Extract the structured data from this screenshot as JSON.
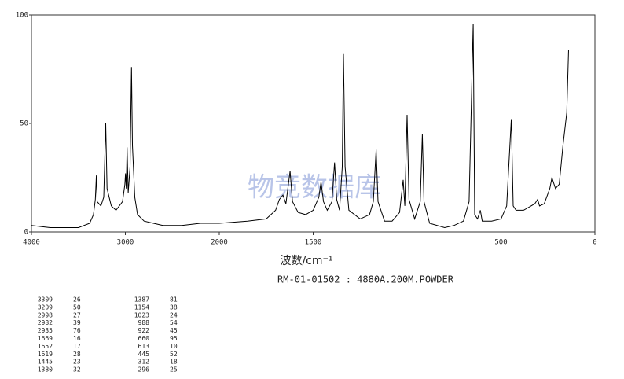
{
  "chart_data": {
    "type": "line",
    "xlabel": "波数/cm⁻¹",
    "subtitle": "RM-01-01502 : 4880A.200M.POWDER",
    "watermark": "物竞数据库",
    "xlim": [
      4000,
      0
    ],
    "x_break": 2000,
    "xticks": [
      4000,
      3000,
      2000,
      1500,
      500,
      0
    ],
    "ylim": [
      0,
      100
    ],
    "yticks": [
      0,
      50,
      100
    ],
    "color": "#000000",
    "x": [
      4000,
      3800,
      3500,
      3380,
      3340,
      3320,
      3309,
      3300,
      3260,
      3230,
      3209,
      3195,
      3150,
      3100,
      3030,
      3005,
      2998,
      2990,
      2982,
      2970,
      2950,
      2935,
      2925,
      2900,
      2870,
      2800,
      2700,
      2600,
      2400,
      2200,
      2000,
      1850,
      1750,
      1700,
      1680,
      1661,
      1645,
      1623,
      1610,
      1580,
      1540,
      1500,
      1470,
      1458,
      1445,
      1425,
      1400,
      1386,
      1375,
      1360,
      1345,
      1339,
      1330,
      1310,
      1250,
      1200,
      1180,
      1165,
      1155,
      1120,
      1080,
      1040,
      1021,
      1012,
      1000,
      990,
      960,
      930,
      919,
      910,
      880,
      800,
      750,
      700,
      670,
      648,
      640,
      625,
      610,
      600,
      550,
      500,
      470,
      445,
      435,
      420,
      380,
      340,
      320,
      305,
      295,
      270,
      240,
      229,
      210,
      190,
      170,
      150,
      140
    ],
    "values": [
      3,
      2,
      2,
      4,
      8,
      15,
      26,
      14,
      12,
      16,
      50,
      20,
      12,
      10,
      14,
      22,
      27,
      20,
      39,
      18,
      30,
      76,
      40,
      16,
      8,
      5,
      4,
      3,
      3,
      4,
      4,
      5,
      6,
      10,
      15,
      17,
      13,
      28,
      14,
      9,
      8,
      10,
      16,
      23,
      14,
      10,
      14,
      32,
      15,
      10,
      30,
      82,
      30,
      10,
      6,
      8,
      14,
      38,
      14,
      5,
      5,
      9,
      24,
      12,
      54,
      15,
      6,
      14,
      45,
      14,
      4,
      2,
      3,
      5,
      14,
      96,
      8,
      6,
      10,
      5,
      5,
      6,
      12,
      52,
      12,
      10,
      10,
      12,
      13,
      15,
      12,
      13,
      20,
      25,
      20,
      22,
      40,
      55,
      84
    ]
  },
  "peaks": [
    {
      "wavenumber": 3309,
      "intensity": 26
    },
    {
      "wavenumber": 3209,
      "intensity": 50
    },
    {
      "wavenumber": 2998,
      "intensity": 27
    },
    {
      "wavenumber": 2982,
      "intensity": 39
    },
    {
      "wavenumber": 2935,
      "intensity": 76
    },
    {
      "wavenumber": 1669,
      "intensity": 16
    },
    {
      "wavenumber": 1652,
      "intensity": 17
    },
    {
      "wavenumber": 1619,
      "intensity": 28
    },
    {
      "wavenumber": 1445,
      "intensity": 23
    },
    {
      "wavenumber": 1380,
      "intensity": 32
    },
    {
      "wavenumber": 1387,
      "intensity": 81
    },
    {
      "wavenumber": 1154,
      "intensity": 38
    },
    {
      "wavenumber": 1023,
      "intensity": 24
    },
    {
      "wavenumber": 988,
      "intensity": 54
    },
    {
      "wavenumber": 922,
      "intensity": 45
    },
    {
      "wavenumber": 660,
      "intensity": 95
    },
    {
      "wavenumber": 613,
      "intensity": 10
    },
    {
      "wavenumber": 445,
      "intensity": 52
    },
    {
      "wavenumber": 312,
      "intensity": 18
    },
    {
      "wavenumber": 296,
      "intensity": 25
    }
  ]
}
